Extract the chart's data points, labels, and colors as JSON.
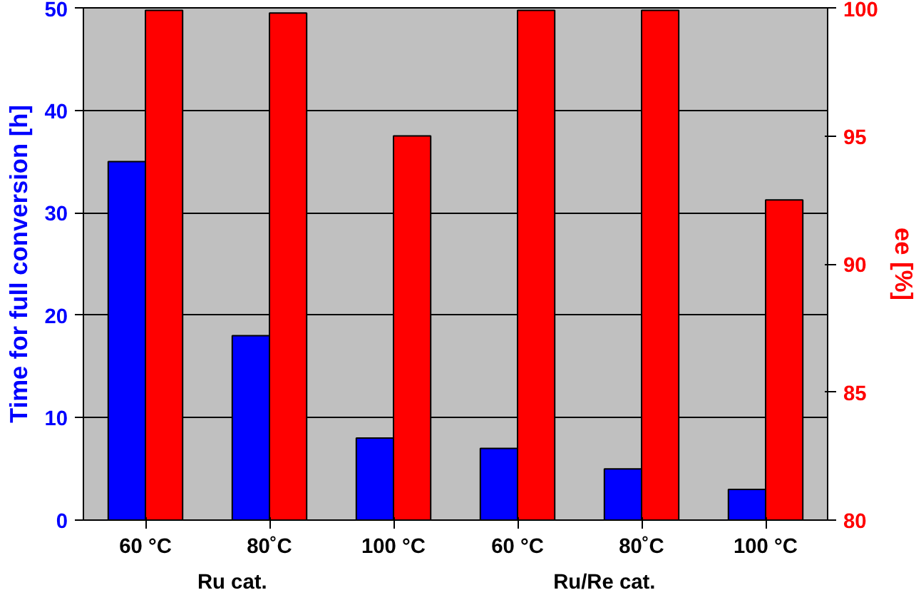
{
  "chart_data": {
    "type": "bar",
    "categories": [
      "60 °C",
      "80˚C",
      "100 °C",
      "60 °C",
      "80˚C",
      "100 °C"
    ],
    "ylabel": "Time for full conversion [h]",
    "y2label": "ee [%]",
    "ylim": [
      0,
      50
    ],
    "yticks": [
      0,
      10,
      20,
      30,
      40,
      50
    ],
    "y2lim": [
      80,
      100
    ],
    "y2ticks": [
      80,
      85,
      90,
      95,
      100
    ],
    "series": [
      {
        "color": "#0000ff",
        "values": [
          35,
          18,
          8,
          7,
          5,
          3
        ]
      },
      {
        "color": "#ff0000",
        "values": [
          99.9,
          99.8,
          95,
          99.9,
          99.9,
          92.5
        ],
        "axis": "y2"
      }
    ],
    "annotations": [
      "Ru cat.",
      "Ru/Re cat."
    ],
    "grid": "y"
  }
}
